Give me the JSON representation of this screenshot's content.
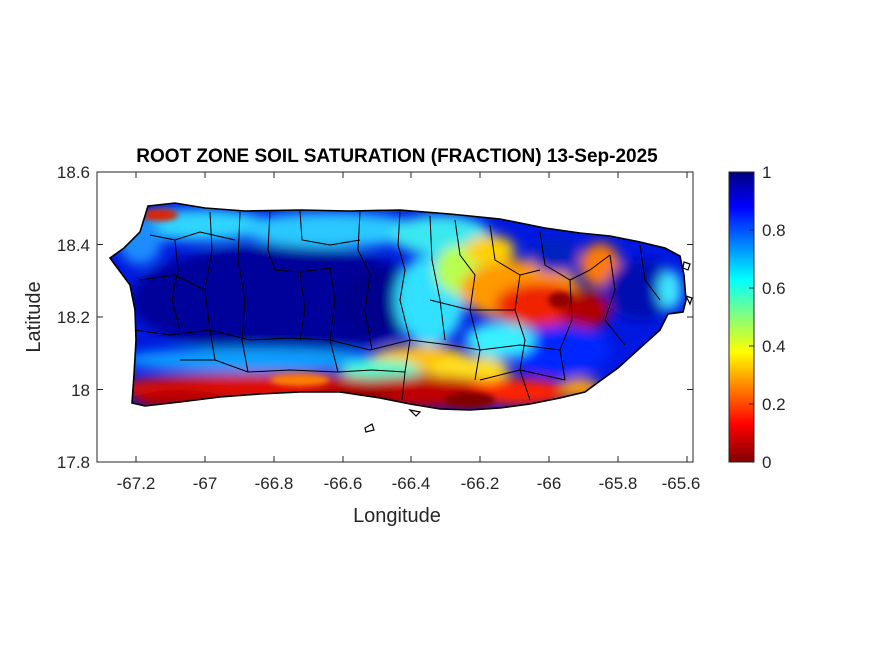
{
  "map": {
    "title": "ROOT ZONE SOIL SATURATION (FRACTION) 13-Sep-2025",
    "x_label": "Longitude",
    "y_label": "Latitude",
    "x_ticks": [
      "-67.2",
      "-67",
      "-66.8",
      "-66.6",
      "-66.4",
      "-66.2",
      "-66",
      "-65.8",
      "-65.6"
    ],
    "y_ticks": [
      "18.6",
      "18.4",
      "18.2",
      "18",
      "17.8"
    ],
    "colorbar_ticks": [
      "1",
      "0.8",
      "0.6",
      "0.4",
      "0.2",
      "0"
    ],
    "colormap": "jet",
    "colormap_stops": [
      "#000080",
      "#0000ff",
      "#00ffff",
      "#ffff00",
      "#ff0000",
      "#800000"
    ],
    "region_outline_color": "#000000",
    "field_summary": [
      {
        "region": "west-central interior",
        "value": 0.9
      },
      {
        "region": "northwest coast",
        "value": 0.55
      },
      {
        "region": "north-central coast",
        "value": 0.6
      },
      {
        "region": "southern coast",
        "value": 0.1
      },
      {
        "region": "east-central",
        "value": 0.2
      },
      {
        "region": "northeast",
        "value": 0.85
      }
    ]
  }
}
